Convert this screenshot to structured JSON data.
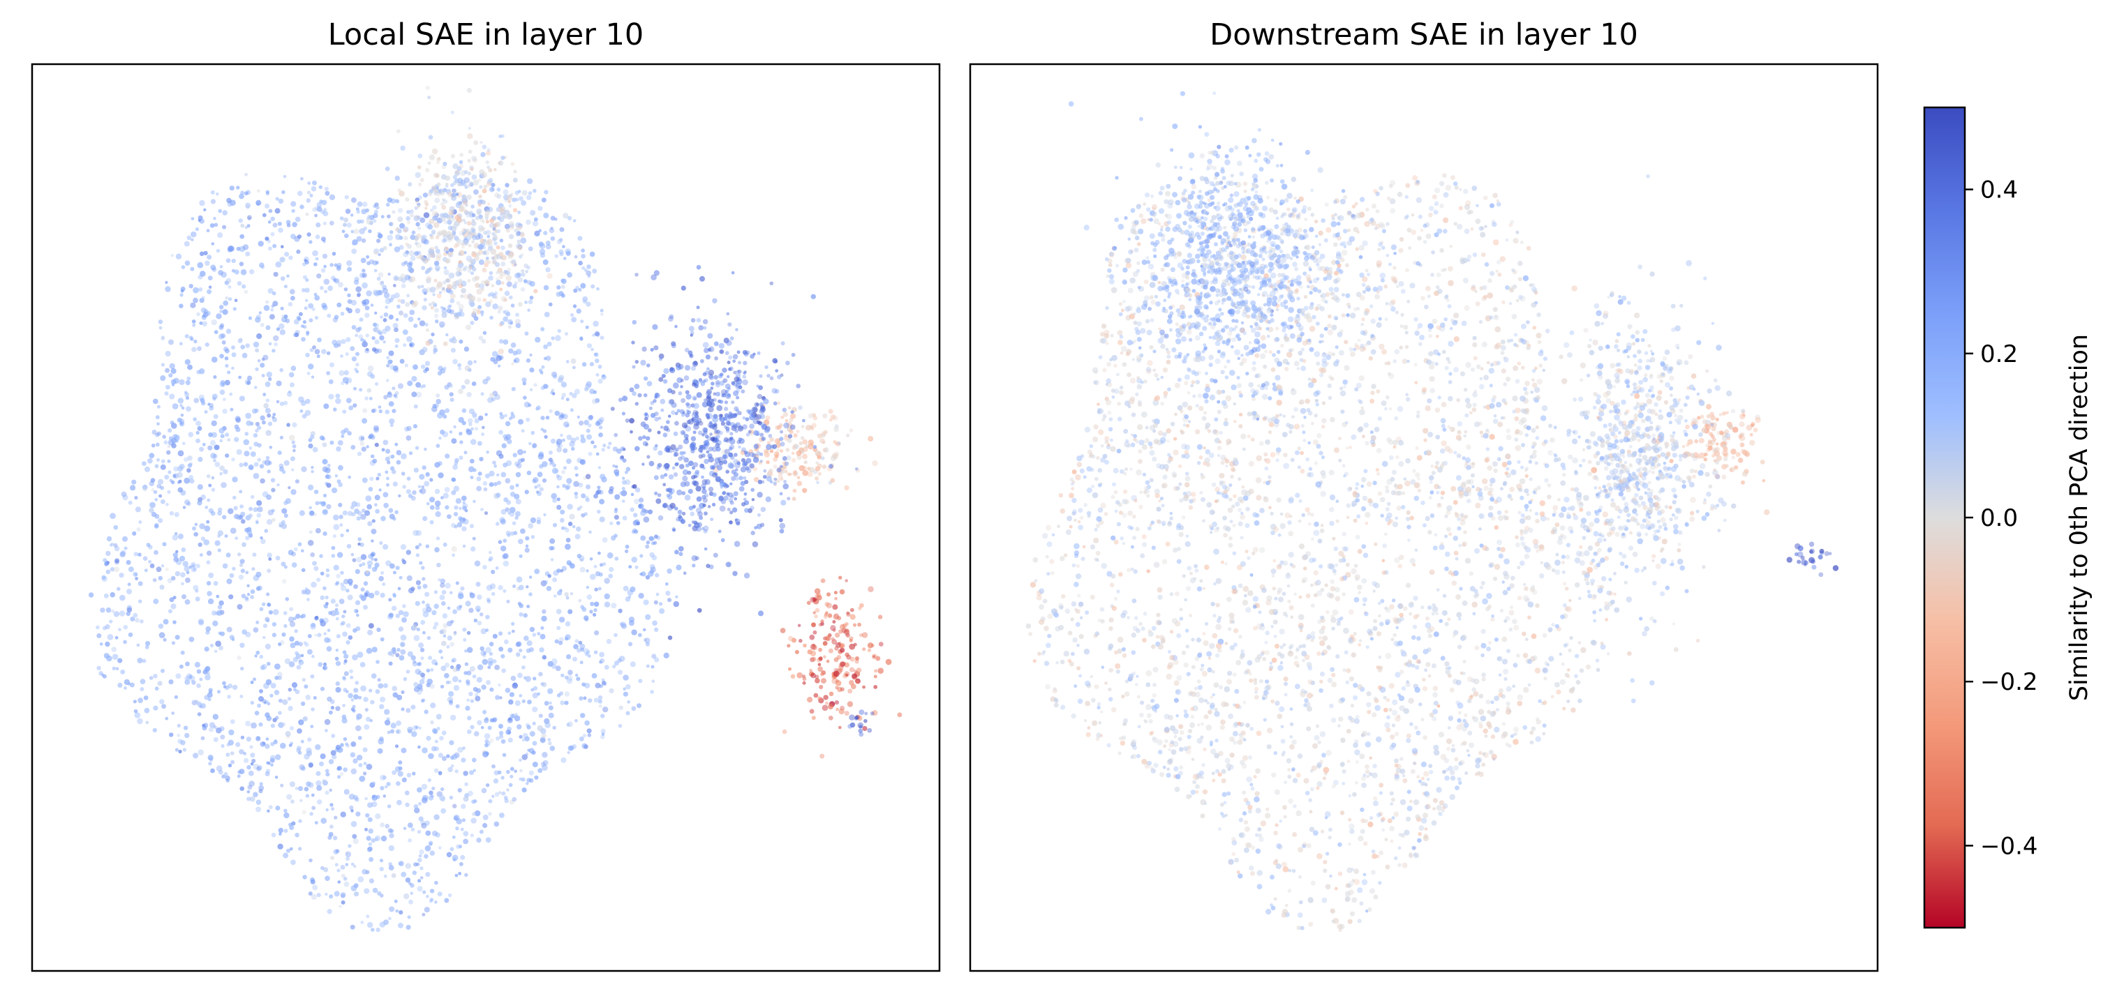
{
  "chart_data": [
    {
      "type": "scatter",
      "title": "Local SAE in layer 10",
      "xlabel": "",
      "ylabel": "",
      "axes_ticks": false,
      "grid": false,
      "legend": "none",
      "point_count_approx": 20000,
      "regions": [
        {
          "area": "main-cloud",
          "x_range": [
            0.05,
            0.72
          ],
          "y_range": [
            0.06,
            0.96
          ],
          "mean_similarity": 0.2
        },
        {
          "area": "upper-mid-cluster",
          "x_range": [
            0.4,
            0.55
          ],
          "y_range": [
            0.08,
            0.3
          ],
          "mean_similarity": 0.02
        },
        {
          "area": "right-upper-cluster",
          "x_range": [
            0.78,
            0.9
          ],
          "y_range": [
            0.38,
            0.47
          ],
          "mean_similarity": -0.1
        },
        {
          "area": "right-lower-cluster",
          "x_range": [
            0.84,
            0.93
          ],
          "y_range": [
            0.58,
            0.72
          ],
          "mean_similarity": -0.35
        },
        {
          "area": "right-arm",
          "x_range": [
            0.66,
            0.83
          ],
          "y_range": [
            0.28,
            0.55
          ],
          "mean_similarity": 0.35
        },
        {
          "area": "blue-tip",
          "x_range": [
            0.9,
            0.93
          ],
          "y_range": [
            0.71,
            0.74
          ],
          "mean_similarity": 0.45
        }
      ]
    },
    {
      "type": "scatter",
      "title": "Downstream SAE in layer 10",
      "xlabel": "",
      "ylabel": "",
      "axes_ticks": false,
      "grid": false,
      "legend": "none",
      "point_count_approx": 20000,
      "regions": [
        {
          "area": "main-cloud",
          "x_range": [
            0.05,
            0.72
          ],
          "y_range": [
            0.06,
            0.96
          ],
          "mean_similarity": 0.02
        },
        {
          "area": "upper-left-blue",
          "x_range": [
            0.18,
            0.4
          ],
          "y_range": [
            0.1,
            0.35
          ],
          "mean_similarity": 0.15
        },
        {
          "area": "right-pink-cluster",
          "x_range": [
            0.78,
            0.88
          ],
          "y_range": [
            0.38,
            0.46
          ],
          "mean_similarity": -0.12
        },
        {
          "area": "right-arm",
          "x_range": [
            0.65,
            0.82
          ],
          "y_range": [
            0.28,
            0.58
          ],
          "mean_similarity": 0.05
        },
        {
          "area": "blue-tip",
          "x_range": [
            0.9,
            0.95
          ],
          "y_range": [
            0.53,
            0.56
          ],
          "mean_similarity": 0.45
        }
      ]
    }
  ],
  "colorbar": {
    "label": "Similarity to 0th PCA direction",
    "colormap": "coolwarm_r",
    "range": [
      -0.5,
      0.5
    ],
    "ticks": [
      0.4,
      0.2,
      0.0,
      -0.2,
      -0.4
    ],
    "tick_labels": [
      "0.4",
      "0.2",
      "0.0",
      "−0.2",
      "−0.4"
    ],
    "colors": {
      "top": "#3b4cc0",
      "middle": "#dddddd",
      "bottom": "#b40426"
    }
  }
}
